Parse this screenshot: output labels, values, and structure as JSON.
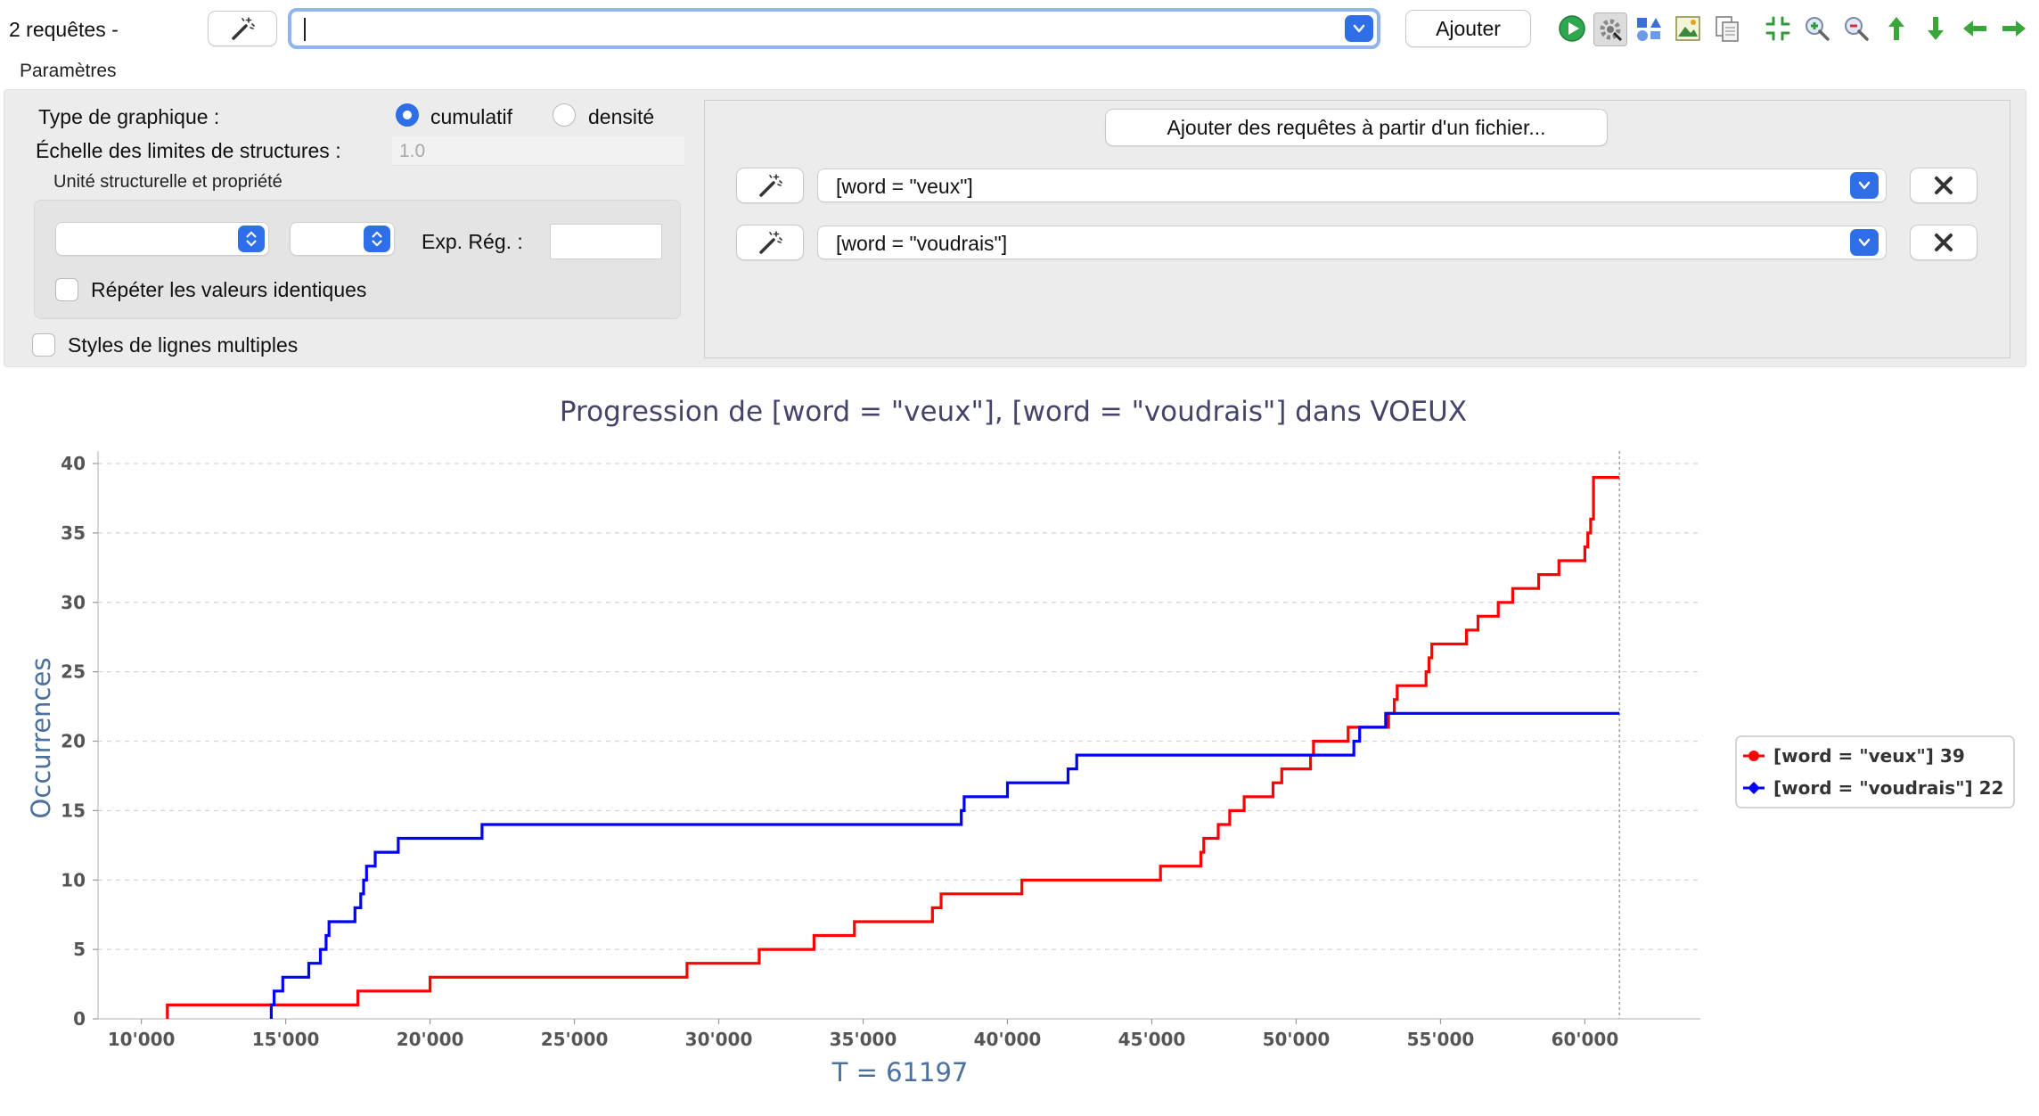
{
  "toolbar": {
    "count_label": "2 requêtes -",
    "query_value": "",
    "add_label": "Ajouter",
    "tools": [
      "play-icon",
      "settings-icon",
      "shapes-icon",
      "export-image-icon",
      "copy-icon",
      "fit-icon",
      "zoom-in-icon",
      "zoom-out-icon",
      "arrow-up-icon",
      "arrow-down-icon",
      "arrow-left-icon",
      "arrow-right-icon"
    ]
  },
  "params": {
    "section_label": "Paramètres",
    "chart_type_label": "Type de graphique :",
    "option_cumulative": "cumulatif",
    "option_density": "densité",
    "selected": "cumulatif",
    "scale_label": "Échelle des limites de structures :",
    "scale_value": "1.0",
    "struct_label": "Unité structurelle et propriété",
    "regex_label": "Exp. Rég. :",
    "repeat_label": "Répéter les valeurs identiques",
    "multi_styles_label": "Styles de lignes multiples"
  },
  "queries": {
    "import_label": "Ajouter des requêtes à partir d'un fichier...",
    "items": [
      {
        "value": "[word = \"veux\"]"
      },
      {
        "value": "[word = \"voudrais\"]"
      }
    ]
  },
  "chart_data": {
    "type": "line",
    "title": "Progression de [word = \"veux\"], [word = \"voudrais\"] dans VOEUX",
    "xlabel": "T = 61197",
    "ylabel": "Occurrences",
    "xlim": [
      8500,
      64000
    ],
    "ylim": [
      0,
      40
    ],
    "x_ticks": [
      10000,
      15000,
      20000,
      25000,
      30000,
      35000,
      40000,
      45000,
      50000,
      55000,
      60000
    ],
    "x_tick_labels": [
      "10'000",
      "15'000",
      "20'000",
      "25'000",
      "30'000",
      "35'000",
      "40'000",
      "45'000",
      "50'000",
      "55'000",
      "60'000"
    ],
    "y_ticks": [
      0,
      5,
      10,
      15,
      20,
      25,
      30,
      35,
      40
    ],
    "marker_x": 61197,
    "legend_position": "right",
    "grid": true,
    "series": [
      {
        "name": "[word = \"veux\"] 39",
        "color": "#ff0000",
        "x": [
          10900,
          17500,
          20000,
          28900,
          31400,
          33300,
          34700,
          37400,
          37700,
          40500,
          45300,
          46700,
          46800,
          47300,
          47700,
          48200,
          49200,
          49500,
          50500,
          50600,
          51800,
          53200,
          53400,
          53500,
          54500,
          54600,
          54700,
          55900,
          56300,
          57000,
          57500,
          58400,
          59100,
          60000,
          60100,
          60200,
          60300
        ],
        "values": [
          1,
          2,
          3,
          4,
          5,
          6,
          7,
          8,
          9,
          10,
          11,
          12,
          13,
          14,
          15,
          16,
          17,
          18,
          19,
          20,
          21,
          22,
          23,
          24,
          25,
          26,
          27,
          28,
          29,
          30,
          31,
          32,
          33,
          34,
          35,
          36,
          39
        ]
      },
      {
        "name": "[word = \"voudrais\"] 22",
        "color": "#0000ff",
        "x": [
          14500,
          14600,
          14900,
          15800,
          16200,
          16400,
          16500,
          17400,
          17600,
          17700,
          17800,
          18100,
          18900,
          21800,
          38400,
          38500,
          40000,
          42100,
          42400,
          52000,
          52200,
          53100
        ],
        "values": [
          1,
          2,
          3,
          4,
          5,
          6,
          7,
          8,
          9,
          10,
          11,
          12,
          13,
          14,
          15,
          16,
          17,
          18,
          19,
          20,
          21,
          22
        ]
      }
    ]
  }
}
